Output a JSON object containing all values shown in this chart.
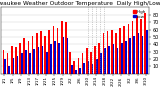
{
  "title": "Milwaukee Weather Outdoor Temperature  Daily High/Low",
  "title_fontsize": 4.2,
  "bar_width": 0.4,
  "high_color": "#ff0000",
  "low_color": "#0000cc",
  "background_color": "#ffffff",
  "grid_color": "#cccccc",
  "ylim": [
    0,
    90
  ],
  "yticks": [
    10,
    20,
    30,
    40,
    50,
    60,
    70,
    80
  ],
  "y_tick_fontsize": 3.5,
  "x_tick_fontsize": 3.0,
  "categories": [
    "1/1",
    "1/3",
    "1/5",
    "1/7",
    "1/9",
    "1/11",
    "1/13",
    "1/15",
    "1/17",
    "1/19",
    "1/21",
    "1/23",
    "1/25",
    "1/27",
    "1/29",
    "1/31",
    "2/2",
    "2/4",
    "2/6",
    "2/8",
    "2/10",
    "2/12",
    "2/14",
    "2/16",
    "2/18",
    "2/20",
    "2/22",
    "2/24",
    "2/26",
    "2/28",
    "3/2",
    "3/4",
    "3/6",
    "3/8",
    "3/10"
  ],
  "highs": [
    33,
    28,
    38,
    36,
    42,
    48,
    45,
    52,
    55,
    58,
    52,
    60,
    65,
    62,
    72,
    70,
    30,
    18,
    22,
    28,
    35,
    30,
    38,
    42,
    55,
    58,
    60,
    55,
    62,
    65,
    68,
    72,
    78,
    74,
    82
  ],
  "lows": [
    20,
    10,
    22,
    24,
    28,
    32,
    28,
    34,
    36,
    38,
    30,
    40,
    45,
    42,
    50,
    48,
    12,
    5,
    8,
    15,
    18,
    14,
    20,
    28,
    35,
    38,
    40,
    35,
    42,
    45,
    48,
    52,
    55,
    52,
    60
  ],
  "dotted_region": [
    20,
    24
  ],
  "legend": [
    {
      "label": "High",
      "color": "#ff0000"
    },
    {
      "label": "Low",
      "color": "#0000cc"
    }
  ]
}
